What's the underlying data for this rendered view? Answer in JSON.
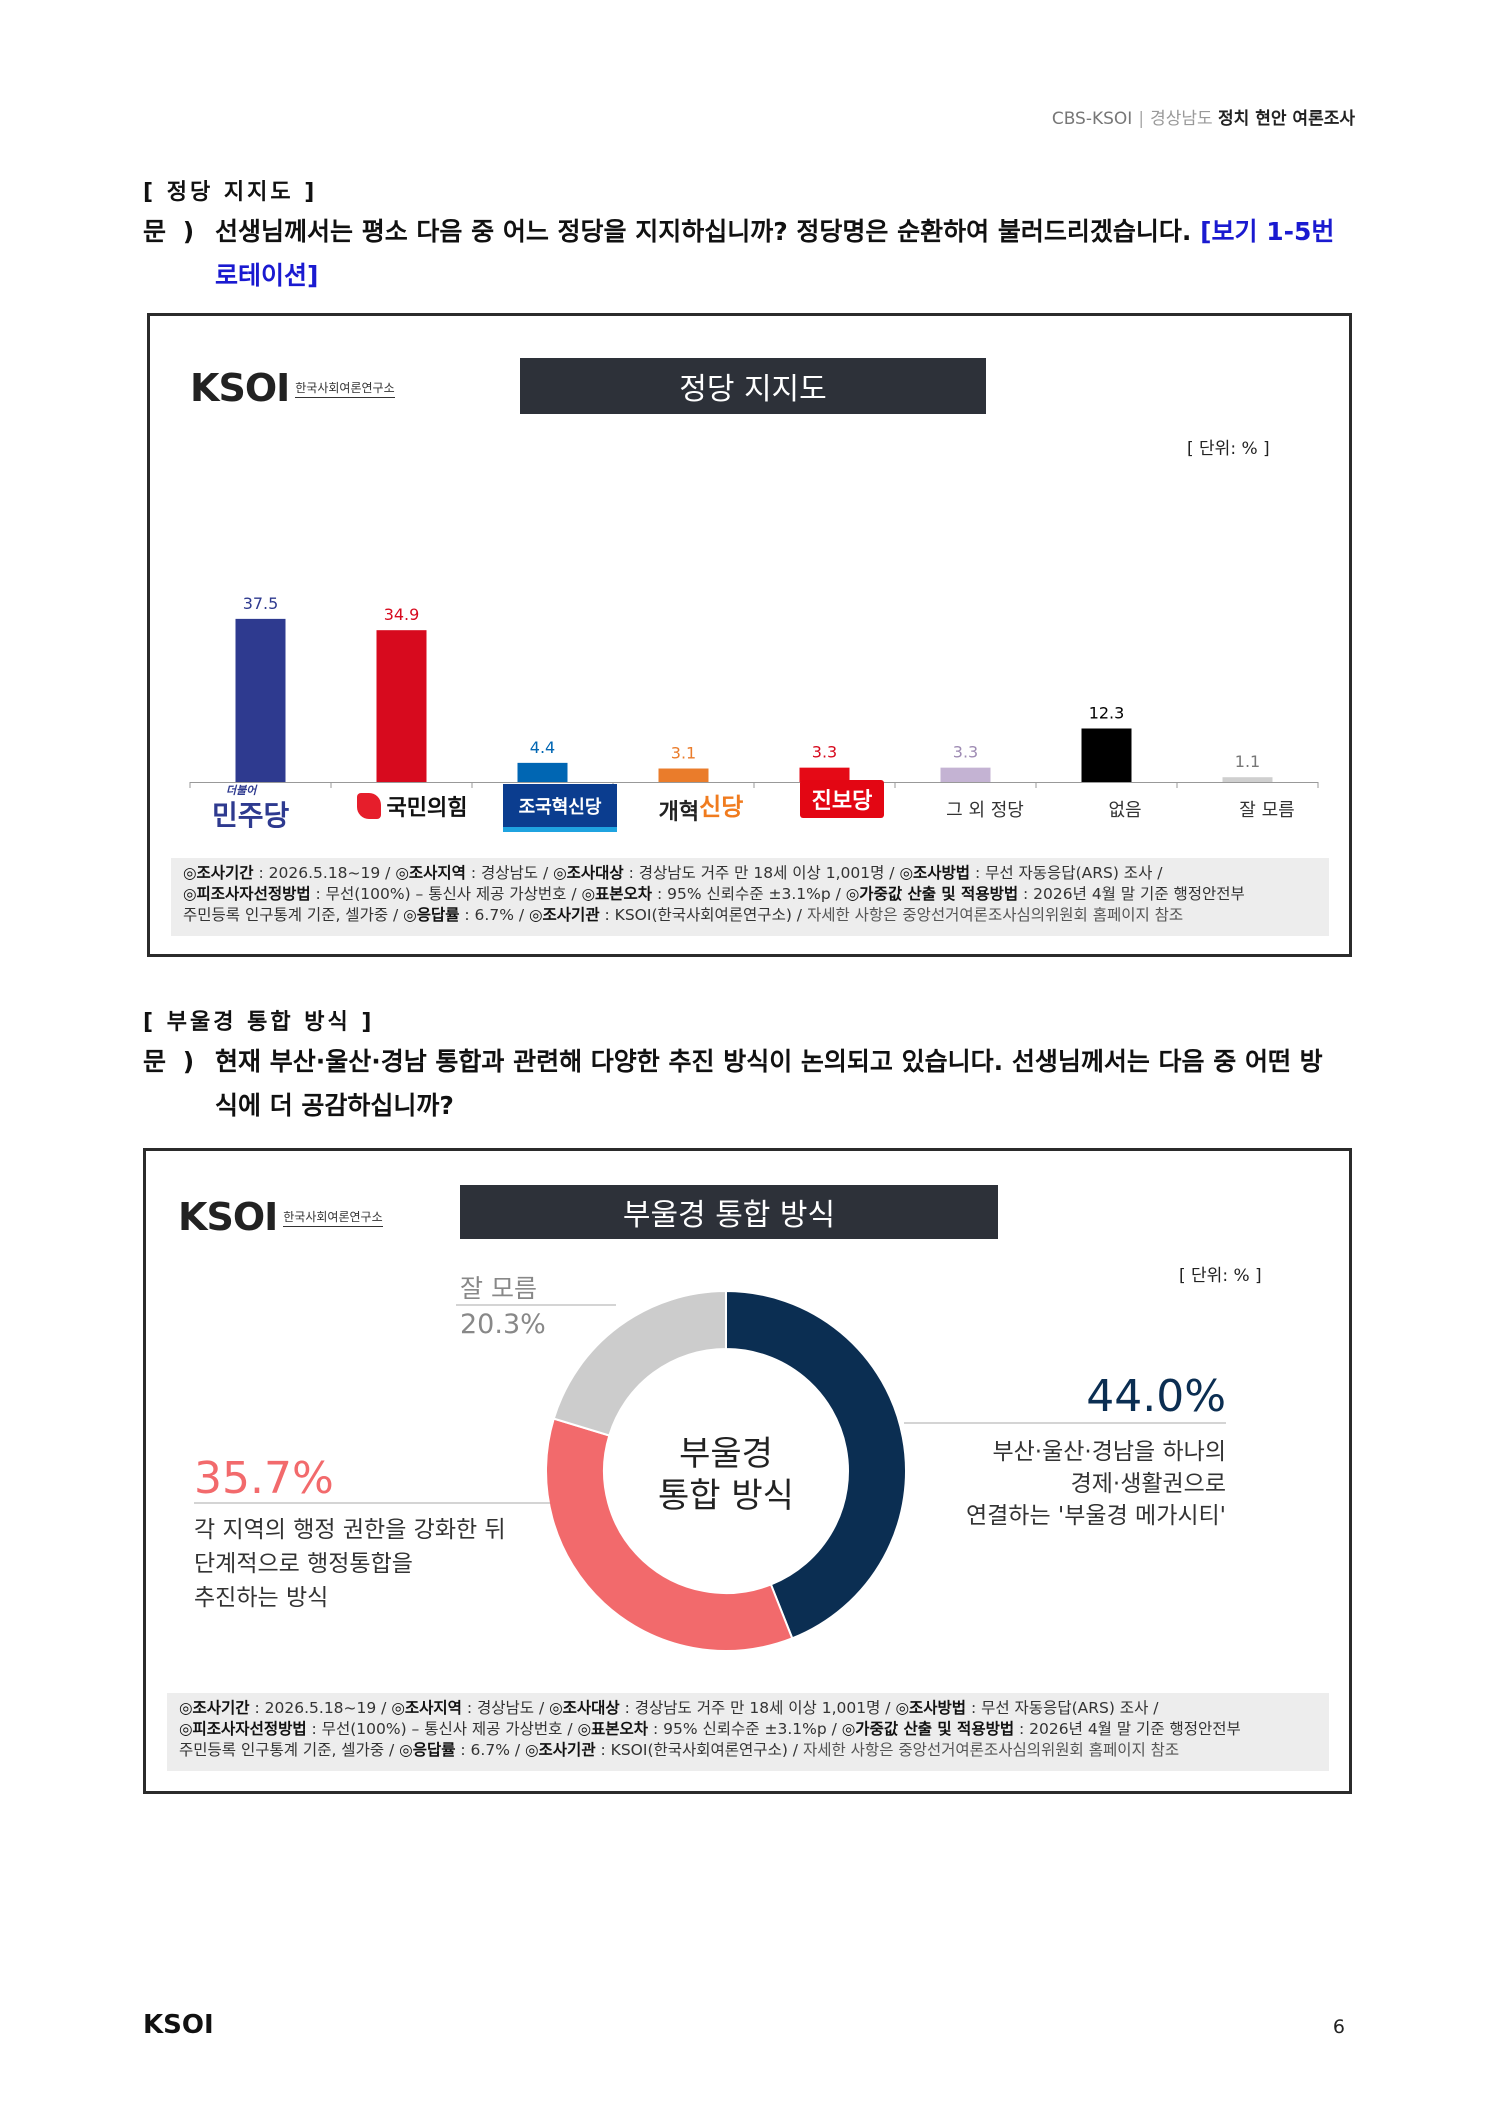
{
  "header": {
    "org": "CBS-KSOI",
    "region": "경상남도",
    "title_bold": "정치 현안 여론조사"
  },
  "section1": {
    "title": "[ 정당 지지도 ]",
    "q_label": "문 )",
    "question": "선생님께서는 평소 다음 중 어느 정당을 지지하십니까? 정당명은 순환하여 불러드리겠습니다.",
    "note": "[보기 1-5번 로테이션]"
  },
  "logo": {
    "mark": "KSOI",
    "sub": "한국사회여론연구소"
  },
  "chart1": {
    "title": "정당 지지도",
    "unit": "[ 단위: % ]",
    "footnote": {
      "l1_a_label": "◎조사기간",
      "l1_a_val": " : 2026.5.18~19 / ",
      "l1_b_label": "◎조사지역",
      "l1_b_val": " : 경상남도 / ",
      "l1_c_label": "◎조사대상",
      "l1_c_val": " : 경상남도 거주 만 18세 이상 1,001명 / ",
      "l1_d_label": "◎조사방법",
      "l1_d_val": " : 무선 자동응답(ARS) 조사 /",
      "l2_a_label": "◎피조사자선정방법",
      "l2_a_val": " : 무선(100%) – 통신사 제공 가상번호 / ",
      "l2_b_label": "◎표본오차",
      "l2_b_val": " : 95% 신뢰수준 ±3.1%p / ",
      "l2_c_label": "◎가중값 산출 및 적용방법",
      "l2_c_val": " : 2026년 4월 말 기준 행정안전부",
      "l3_a": "주민등록 인구통계 기준, 셀가중 / ",
      "l3_b_label": "◎응답률",
      "l3_b_val": " : 6.7% / ",
      "l3_c_label": "◎조사기관",
      "l3_c_val": " : KSOI(한국사회여론연구소) / ",
      "l3_d": "자세한 사항은 중앙선거여론조사심의위원회 홈페이지 참조"
    }
  },
  "chart_data": [
    {
      "type": "bar",
      "title": "정당 지지도",
      "unit": "[ 단위: % ]",
      "categories": [
        "더불어민주당",
        "국민의힘",
        "조국혁신당",
        "개혁신당",
        "진보당",
        "그 외 정당",
        "없음",
        "잘 모름"
      ],
      "category_labels": [
        "민주당",
        "국민의힘",
        "조국혁신당",
        "개혁신당",
        "진보당",
        "그 외 정당",
        "없음",
        "잘 모름"
      ],
      "values": [
        37.5,
        34.9,
        4.4,
        3.1,
        3.3,
        3.3,
        12.3,
        1.1
      ],
      "colors": [
        "#2e3a8f",
        "#d70a1e",
        "#0066b3",
        "#ea7c2b",
        "#e50a16",
        "#c4b3d3",
        "#000000",
        "#999999"
      ],
      "value_label_colors": [
        "#2e3a8f",
        "#d70a1e",
        "#0066b3",
        "#ea7c2b",
        "#d70a1e",
        "#9e8bb3",
        "#000000",
        "#777777"
      ],
      "ylim": [
        0,
        40
      ]
    },
    {
      "type": "pie",
      "title": "부울경 통합 방식",
      "unit": "[ 단위: % ]",
      "center_label": [
        "부울경",
        "통합 방식"
      ],
      "slices": [
        {
          "value": 44.0,
          "pct_label": "44.0%",
          "label": [
            "부산·울산·경남을 하나의",
            "경제·생활권으로",
            "연결하는 '부울경 메가시티'"
          ],
          "color": "#0b2e52"
        },
        {
          "value": 35.7,
          "pct_label": "35.7%",
          "label": [
            "각 지역의 행정 권한을 강화한 뒤",
            "단계적으로 행정통합을",
            "추진하는 방식"
          ],
          "color": "#f26a6c"
        },
        {
          "value": 20.3,
          "pct_label": "20.3%",
          "label": [
            "잘 모름"
          ],
          "color": "#cccccc"
        }
      ]
    }
  ],
  "party_logos": {
    "minjoo_small": "더불어",
    "minjoo": "민주당",
    "ppp": "국민의힘",
    "cho": "조국혁신당",
    "kaehyuk_a": "개혁",
    "kaehyuk_b": "신당",
    "jinbo": "진보당",
    "others": "그 외 정당",
    "none": "없음",
    "dunno": "잘 모름"
  },
  "section2": {
    "title": "[ 부울경 통합 방식 ]",
    "q_label": "문 )",
    "question": "현재 부산·울산·경남 통합과 관련해 다양한 추진 방식이 논의되고 있습니다. 선생님께서는 다음 중 어떤 방식에 더 공감하십니까?"
  },
  "chart2": {
    "title": "부울경 통합 방식",
    "unit": "[ 단위: % ]"
  },
  "page": {
    "number": "6",
    "logo": "KSOI"
  }
}
